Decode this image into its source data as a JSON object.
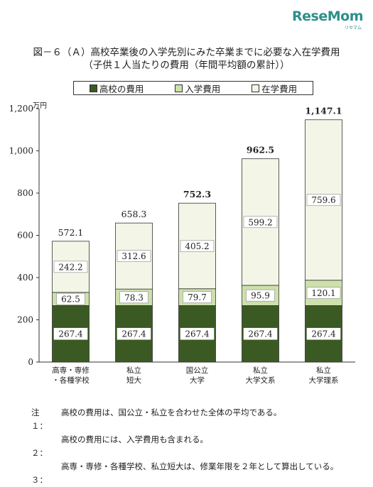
{
  "brand": {
    "name": "ReseMom",
    "sub": "リセマム"
  },
  "title_line1": "図－６（Ａ）高校卒業後の入学先別にみた卒業までに必要な入在学費用",
  "title_line2": "（子供１人当たりの費用（年間平均額の累計））",
  "colors": {
    "high_school": "#3b5a23",
    "entrance": "#cde0ab",
    "attendance": "#f3f6e7"
  },
  "chart_data": {
    "type": "bar",
    "stacked": true,
    "categories": [
      [
        "高専・専修",
        "・各種学校"
      ],
      [
        "私立",
        "短大"
      ],
      [
        "国公立",
        "大学"
      ],
      [
        "私立",
        "大学文系"
      ],
      [
        "私立",
        "大学理系"
      ]
    ],
    "series": [
      {
        "name": "高校の費用",
        "values": [
          267.4,
          267.4,
          267.4,
          267.4,
          267.4
        ],
        "labels": [
          "267.4",
          "267.4",
          "267.4",
          "267.4",
          "267.4"
        ]
      },
      {
        "name": "入学費用",
        "values": [
          62.5,
          78.3,
          79.7,
          95.9,
          120.1
        ],
        "labels": [
          "62.5",
          "78.3",
          "79.7",
          "95.9",
          "120.1"
        ]
      },
      {
        "name": "在学費用",
        "values": [
          242.2,
          312.6,
          405.2,
          599.2,
          759.6
        ],
        "labels": [
          "242.2",
          "312.6",
          "405.2",
          "599.2",
          "759.6"
        ]
      }
    ],
    "totals": [
      572.1,
      658.3,
      752.3,
      962.5,
      1147.1
    ],
    "total_labels": [
      "572.1",
      "658.3",
      "752.3",
      "962.5",
      "1,147.1"
    ],
    "total_bold": [
      false,
      false,
      true,
      true,
      true
    ],
    "yticks": [
      0,
      200,
      400,
      600,
      800,
      1000,
      1200
    ],
    "ytick_labels": [
      "0",
      "200",
      "400",
      "600",
      "800",
      "1,000",
      "1,200"
    ],
    "ylabel": "万円",
    "ylim": [
      0,
      1200
    ],
    "grid": false,
    "legend_position": "top"
  },
  "notes": [
    {
      "head": "注　１：",
      "text": "高校の費用は、国公立・私立を合わせた全体の平均である。"
    },
    {
      "head": "　　２：",
      "text": "高校の費用には、入学費用も含まれる。"
    },
    {
      "head": "　　３：",
      "text": "高専・専修・各種学校、私立短大は、修業年限を２年として算出している。"
    }
  ]
}
